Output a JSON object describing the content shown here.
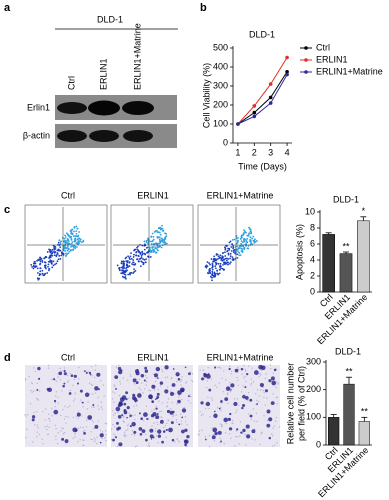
{
  "panel_labels": [
    "a",
    "b",
    "c",
    "d"
  ],
  "blot": {
    "title": "DLD-1",
    "lanes": [
      "Ctrl",
      "ERLIN1",
      "ERLIN1+Matrine"
    ],
    "rows": [
      "Erlin1",
      "β-actin"
    ]
  },
  "flow": {
    "labels": [
      "Ctrl",
      "ERLIN1",
      "ERLIN1+Matrine"
    ]
  },
  "micrographs": {
    "labels": [
      "Ctrl",
      "ERLIN1",
      "ERLIN1+Matrine"
    ]
  },
  "chart_data": [
    {
      "type": "line",
      "title": "DLD-1",
      "xlabel": "Time (Days)",
      "ylabel": "Cell Viability (%)",
      "x": [
        1,
        2,
        3,
        4
      ],
      "xlim": [
        0.7,
        4.3
      ],
      "xticks": [
        1,
        2,
        3,
        4
      ],
      "ylim": [
        0,
        500
      ],
      "yticks": [
        0,
        100,
        200,
        300,
        400,
        500
      ],
      "series": [
        {
          "name": "Ctrl",
          "color": "#000000",
          "values": [
            100,
            160,
            240,
            375
          ]
        },
        {
          "name": "ERLIN1",
          "color": "#e03020",
          "values": [
            100,
            195,
            310,
            450
          ]
        },
        {
          "name": "ERLIN1+Matrine",
          "color": "#2a2a9a",
          "values": [
            100,
            140,
            210,
            360
          ]
        }
      ]
    },
    {
      "type": "bar",
      "title": "DLD-1",
      "ylabel": [
        "Apoptosis (%)"
      ],
      "categories": [
        "Ctrl",
        "ERLIN1",
        "ERLIN1+Matrine"
      ],
      "values": [
        7.2,
        4.8,
        8.9
      ],
      "errors": [
        0.2,
        0.2,
        0.5
      ],
      "colors": [
        "#333333",
        "#555555",
        "#cccccc"
      ],
      "ylim": [
        0,
        10
      ],
      "yticks": [
        0,
        2,
        4,
        6,
        8,
        10
      ],
      "annotations": [
        {
          "category": "ERLIN1",
          "text": "**"
        },
        {
          "category": "ERLIN1+Matrine",
          "text": "*"
        }
      ]
    },
    {
      "type": "bar",
      "title": "DLD-1",
      "ylabel": [
        "Relative cell number",
        "per field (% of Ctrl)"
      ],
      "categories": [
        "Ctrl",
        "ERLIN1",
        "ERLIN1+Matrine"
      ],
      "values": [
        100,
        220,
        85
      ],
      "errors": [
        10,
        25,
        15
      ],
      "colors": [
        "#333333",
        "#555555",
        "#cccccc"
      ],
      "ylim": [
        0,
        300
      ],
      "yticks": [
        0,
        100,
        200,
        300
      ],
      "annotations": [
        {
          "category": "ERLIN1",
          "text": "**"
        },
        {
          "category": "ERLIN1+Matrine",
          "text": "**"
        }
      ]
    }
  ]
}
